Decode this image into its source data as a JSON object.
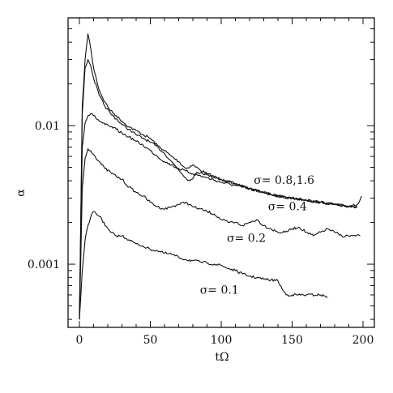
{
  "chart_data": {
    "type": "line",
    "title": "",
    "xlabel": "tΩ",
    "ylabel": "α",
    "xlim": [
      -8,
      208
    ],
    "ylim": [
      0.00035,
      0.06
    ],
    "yscale": "log",
    "grid": false,
    "x_ticks": [
      0,
      50,
      100,
      150,
      200
    ],
    "x_tick_labels": [
      "0",
      "50",
      "100",
      "150",
      "200"
    ],
    "y_major_ticks": [
      0.001,
      0.01
    ],
    "y_tick_labels": [
      "0.001",
      "0.01"
    ],
    "y_minor_ticks": [
      0.0004,
      0.0005,
      0.0006,
      0.0007,
      0.0008,
      0.0009,
      0.002,
      0.003,
      0.004,
      0.005,
      0.006,
      0.007,
      0.008,
      0.009,
      0.02,
      0.03,
      0.04,
      0.05
    ],
    "series": [
      {
        "name": "σ= 0.8,1.6",
        "x": [
          0,
          2,
          4,
          6,
          8,
          10,
          14,
          18,
          22,
          26,
          30,
          35,
          40,
          45,
          50,
          55,
          60,
          65,
          70,
          75,
          80,
          85,
          90,
          100,
          110,
          120,
          130,
          140,
          150,
          160,
          170,
          180,
          190,
          196,
          199
        ],
        "y": [
          0.0004,
          0.014,
          0.03,
          0.046,
          0.036,
          0.026,
          0.018,
          0.0148,
          0.0128,
          0.0118,
          0.0108,
          0.0098,
          0.0092,
          0.0086,
          0.0081,
          0.0072,
          0.0066,
          0.006,
          0.0055,
          0.0049,
          0.0052,
          0.0048,
          0.0045,
          0.0041,
          0.0038,
          0.0035,
          0.0033,
          0.0031,
          0.003,
          0.0029,
          0.0028,
          0.0027,
          0.0026,
          0.0027,
          0.0031
        ]
      },
      {
        "name": "σ= 0.8,1.6",
        "x": [
          0,
          2,
          4,
          6,
          8,
          10,
          14,
          18,
          22,
          26,
          30,
          35,
          40,
          45,
          50,
          55,
          60,
          65,
          70,
          75,
          78,
          82,
          86,
          90,
          100,
          110,
          120,
          130,
          140,
          150,
          160,
          170,
          180,
          190,
          196
        ],
        "y": [
          0.0004,
          0.012,
          0.026,
          0.03,
          0.027,
          0.022,
          0.0165,
          0.0138,
          0.0122,
          0.0112,
          0.0102,
          0.0094,
          0.0086,
          0.0081,
          0.0076,
          0.007,
          0.0063,
          0.0055,
          0.0048,
          0.0042,
          0.004,
          0.0045,
          0.0046,
          0.0044,
          0.0041,
          0.0038,
          0.0035,
          0.0033,
          0.0031,
          0.003,
          0.0029,
          0.0028,
          0.0027,
          0.0026,
          0.0026
        ]
      },
      {
        "name": "σ= 0.4",
        "x": [
          0,
          2,
          4,
          6,
          8,
          10,
          14,
          18,
          22,
          26,
          30,
          35,
          40,
          45,
          50,
          55,
          60,
          65,
          70,
          75,
          80,
          90,
          100,
          110,
          120,
          130,
          140,
          150,
          160,
          170,
          180,
          190,
          196
        ],
        "y": [
          0.0004,
          0.007,
          0.0105,
          0.0118,
          0.0122,
          0.0118,
          0.0108,
          0.0102,
          0.0098,
          0.0094,
          0.0088,
          0.0083,
          0.0077,
          0.0072,
          0.0066,
          0.006,
          0.0055,
          0.0052,
          0.0049,
          0.0047,
          0.0045,
          0.0042,
          0.0039,
          0.0037,
          0.0035,
          0.0033,
          0.0031,
          0.003,
          0.0029,
          0.0028,
          0.0027,
          0.0026,
          0.0026
        ]
      },
      {
        "name": "σ= 0.2",
        "x": [
          0,
          2,
          4,
          6,
          8,
          10,
          14,
          18,
          22,
          26,
          30,
          35,
          40,
          45,
          50,
          55,
          60,
          65,
          70,
          75,
          80,
          85,
          90,
          95,
          100,
          105,
          110,
          115,
          120,
          125,
          130,
          135,
          140,
          145,
          150,
          155,
          160,
          165,
          170,
          175,
          180,
          185,
          190,
          195,
          198
        ],
        "y": [
          0.0004,
          0.0035,
          0.0058,
          0.0068,
          0.0066,
          0.0062,
          0.0055,
          0.0049,
          0.0046,
          0.0043,
          0.0041,
          0.0036,
          0.0033,
          0.0031,
          0.0028,
          0.0026,
          0.0025,
          0.0026,
          0.0027,
          0.0028,
          0.0026,
          0.0025,
          0.0024,
          0.0023,
          0.0021,
          0.002,
          0.002,
          0.0019,
          0.002,
          0.0021,
          0.0019,
          0.0018,
          0.0017,
          0.0017,
          0.0018,
          0.00185,
          0.0017,
          0.0016,
          0.0017,
          0.0018,
          0.0017,
          0.0016,
          0.0016,
          0.0016,
          0.0016
        ]
      },
      {
        "name": "σ= 0.1",
        "x": [
          0,
          2,
          4,
          6,
          8,
          10,
          12,
          15,
          18,
          22,
          26,
          30,
          35,
          40,
          45,
          50,
          55,
          60,
          65,
          70,
          75,
          80,
          85,
          90,
          95,
          100,
          105,
          110,
          115,
          120,
          125,
          130,
          135,
          140,
          143,
          146,
          150,
          160,
          170,
          175
        ],
        "y": [
          0.0004,
          0.0009,
          0.0015,
          0.0019,
          0.0022,
          0.0024,
          0.0023,
          0.0022,
          0.0019,
          0.0017,
          0.0016,
          0.0016,
          0.0015,
          0.0014,
          0.00135,
          0.00128,
          0.00125,
          0.0012,
          0.00118,
          0.00112,
          0.00108,
          0.00106,
          0.00104,
          0.00102,
          0.001,
          0.00098,
          0.00093,
          0.0009,
          0.00085,
          0.00082,
          0.0008,
          0.00078,
          0.00077,
          0.00076,
          0.00066,
          0.0006,
          0.0006,
          0.0006,
          0.0006,
          0.00058
        ]
      }
    ],
    "annotations": [
      {
        "text": "σ= 0.8,1.6",
        "x": 123,
        "y": 0.0038
      },
      {
        "text": "σ= 0.4",
        "x": 133,
        "y": 0.00245
      },
      {
        "text": "σ= 0.2",
        "x": 104,
        "y": 0.00145
      },
      {
        "text": "σ= 0.1",
        "x": 85,
        "y": 0.00061
      }
    ]
  }
}
